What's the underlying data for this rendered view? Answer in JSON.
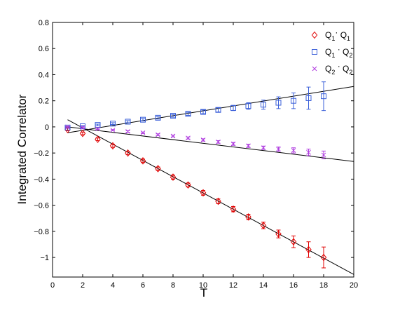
{
  "chart_data": {
    "type": "scatter",
    "title": "",
    "xlabel": "T",
    "ylabel": "Integrated Correlator",
    "xlim": [
      0,
      20
    ],
    "ylim": [
      -1.15,
      0.8
    ],
    "xticks": [
      0,
      2,
      4,
      6,
      8,
      10,
      12,
      14,
      16,
      18,
      20
    ],
    "yticks": [
      0.8,
      0.6,
      0.4,
      0.2,
      0,
      -0.2,
      -0.4,
      -0.6,
      -0.8,
      -1
    ],
    "xtick_labels": [
      "0",
      "2",
      "4",
      "6",
      "8",
      "10",
      "12",
      "14",
      "16",
      "18",
      "20"
    ],
    "ytick_labels": [
      "0.8",
      "0.6",
      "0.4",
      "0.2",
      "0",
      "−0.2",
      "−0.4",
      "−0.6",
      "−0.8",
      "−1"
    ],
    "grid": false,
    "legend_position": "top-right",
    "legend": [
      {
        "main": "Q",
        "sub": "1",
        "sep": "· ",
        "main2": "Q",
        "sub2": "1"
      },
      {
        "main": "Q",
        "sub": "1",
        "sep": " · ",
        "main2": "Q",
        "sub2": "2"
      },
      {
        "main": "Q",
        "sub": "2",
        "sep": " · ",
        "main2": "Q",
        "sub2": "2"
      }
    ],
    "x": [
      1,
      2,
      3,
      4,
      5,
      6,
      7,
      8,
      9,
      10,
      11,
      12,
      13,
      14,
      15,
      16,
      17,
      18
    ],
    "series": [
      {
        "marker": "diamond",
        "color": "#e00000",
        "values": [
          -0.02,
          -0.05,
          -0.095,
          -0.145,
          -0.2,
          -0.26,
          -0.32,
          -0.385,
          -0.445,
          -0.505,
          -0.57,
          -0.63,
          -0.69,
          -0.755,
          -0.82,
          -0.88,
          -0.94,
          -1.0
        ],
        "errors": [
          0.01,
          0.01,
          0.01,
          0.012,
          0.012,
          0.013,
          0.013,
          0.015,
          0.015,
          0.018,
          0.018,
          0.02,
          0.02,
          0.025,
          0.03,
          0.045,
          0.06,
          0.08
        ],
        "fit": {
          "x0": 1,
          "y0": 0.055,
          "x1": 20,
          "y1": -1.13
        }
      },
      {
        "marker": "square",
        "color": "#3a5fd9",
        "values": [
          -0.005,
          0.005,
          0.015,
          0.025,
          0.04,
          0.055,
          0.07,
          0.085,
          0.1,
          0.115,
          0.13,
          0.145,
          0.16,
          0.17,
          0.185,
          0.2,
          0.22,
          0.235
        ],
        "errors": [
          0.005,
          0.005,
          0.006,
          0.007,
          0.008,
          0.009,
          0.01,
          0.011,
          0.012,
          0.014,
          0.016,
          0.02,
          0.025,
          0.035,
          0.045,
          0.06,
          0.085,
          0.11
        ],
        "fit": {
          "x0": 1,
          "y0": -0.045,
          "x1": 20,
          "y1": 0.31
        }
      },
      {
        "marker": "cross",
        "color": "#b03ee0",
        "values": [
          0.0,
          -0.005,
          -0.015,
          -0.025,
          -0.035,
          -0.045,
          -0.06,
          -0.07,
          -0.085,
          -0.1,
          -0.115,
          -0.13,
          -0.145,
          -0.16,
          -0.17,
          -0.18,
          -0.195,
          -0.215
        ],
        "errors": [
          0.004,
          0.004,
          0.005,
          0.005,
          0.006,
          0.006,
          0.007,
          0.007,
          0.008,
          0.009,
          0.01,
          0.011,
          0.012,
          0.013,
          0.016,
          0.02,
          0.025,
          0.03
        ],
        "fit": {
          "x0": 1,
          "y0": 0.0,
          "x1": 20,
          "y1": -0.265
        }
      }
    ]
  }
}
